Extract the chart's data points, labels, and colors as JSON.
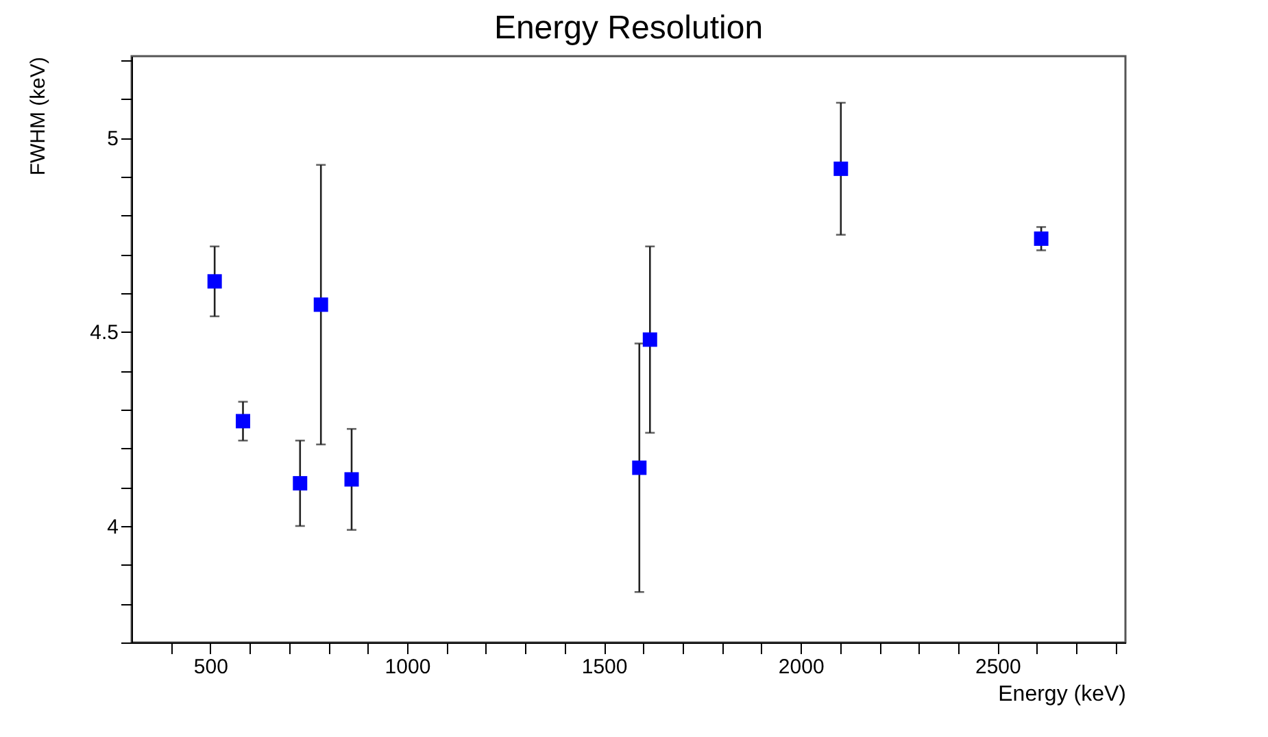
{
  "chart_data": {
    "type": "scatter",
    "title": "Energy Resolution",
    "xlabel": "Energy (keV)",
    "ylabel": "FWHM (keV)",
    "x": [
      511,
      583,
      728,
      781,
      859,
      1590,
      1617,
      2102,
      2611
    ],
    "series": [
      {
        "color": "#0000ff",
        "values": [
          4.63,
          4.27,
          4.11,
          4.57,
          4.12,
          4.15,
          4.48,
          4.92,
          4.74
        ],
        "errors": [
          0.09,
          0.05,
          0.11,
          0.36,
          0.13,
          0.32,
          0.24,
          0.17,
          0.03
        ]
      }
    ],
    "xlim": [
      300,
      2825
    ],
    "xticks": [
      {
        "value": 400,
        "label": null
      },
      500,
      {
        "value": 600,
        "label": null
      },
      {
        "value": 700,
        "label": null
      },
      {
        "value": 800,
        "label": null
      },
      {
        "value": 900,
        "label": null
      },
      1000,
      {
        "value": 1100,
        "label": null
      },
      {
        "value": 1200,
        "label": null
      },
      {
        "value": 1300,
        "label": null
      },
      {
        "value": 1400,
        "label": null
      },
      1500,
      {
        "value": 1600,
        "label": null
      },
      {
        "value": 1700,
        "label": null
      },
      {
        "value": 1800,
        "label": null
      },
      {
        "value": 1900,
        "label": null
      },
      2000,
      {
        "value": 2100,
        "label": null
      },
      {
        "value": 2200,
        "label": null
      },
      {
        "value": 2300,
        "label": null
      },
      {
        "value": 2400,
        "label": null
      },
      2500,
      {
        "value": 2600,
        "label": null
      },
      {
        "value": 2700,
        "label": null
      },
      {
        "value": 2800,
        "label": null
      }
    ],
    "ylim": [
      3.7,
      5.21
    ],
    "yticks": [
      {
        "value": 3.7,
        "label": null
      },
      {
        "value": 3.8,
        "label": null
      },
      {
        "value": 3.9,
        "label": null
      },
      4,
      {
        "value": 4.1,
        "label": null
      },
      {
        "value": 4.2,
        "label": null
      },
      {
        "value": 4.3,
        "label": null
      },
      {
        "value": 4.4,
        "label": null
      },
      4.5,
      {
        "value": 4.6,
        "label": null
      },
      {
        "value": 4.7,
        "label": null
      },
      {
        "value": 4.8,
        "label": null
      },
      {
        "value": 4.9,
        "label": null
      },
      5,
      {
        "value": 5.1,
        "label": null
      },
      {
        "value": 5.2,
        "label": null
      }
    ],
    "marker": "square"
  }
}
